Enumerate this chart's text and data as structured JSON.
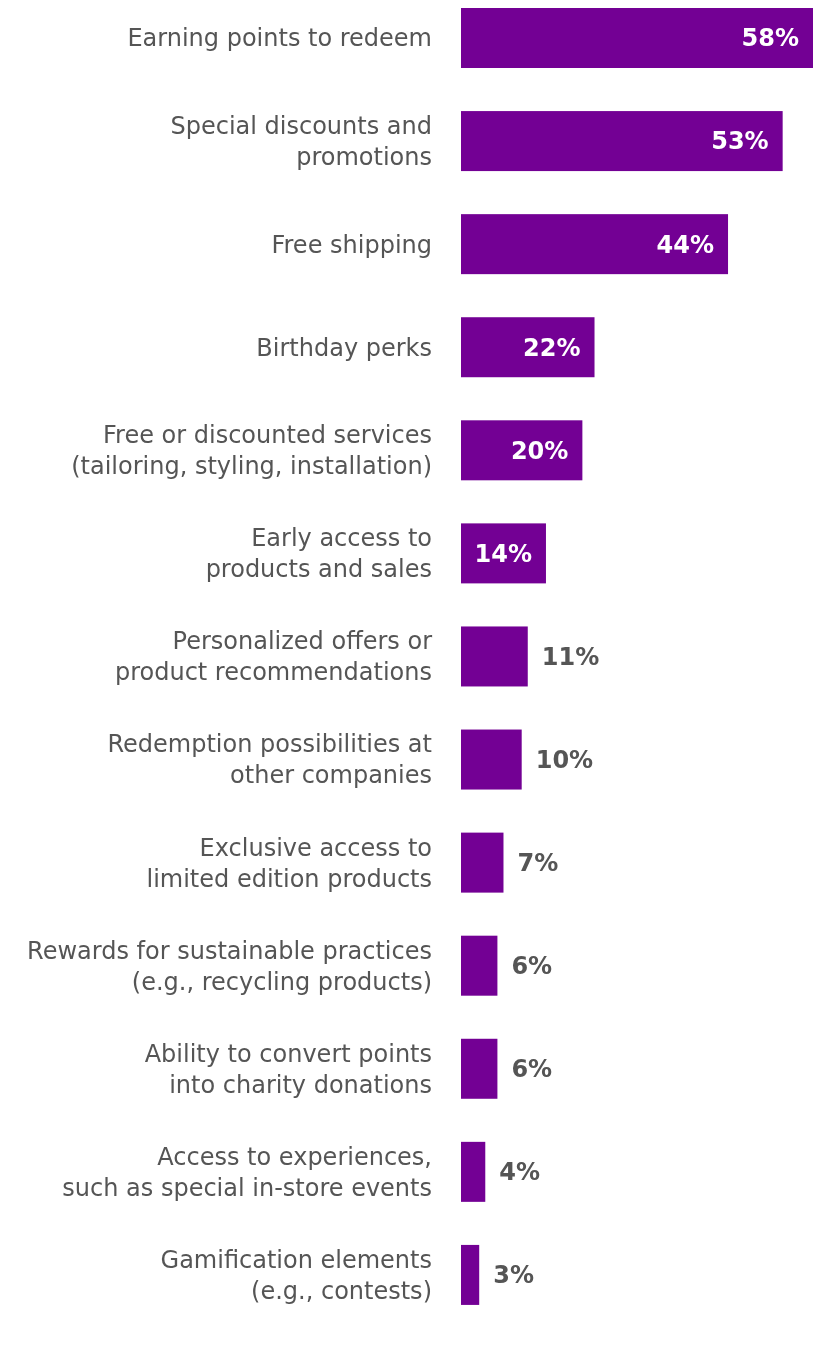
{
  "chart_data": {
    "type": "bar",
    "orientation": "horizontal",
    "data_labels": true,
    "color": "#730094",
    "categories": [
      "Earning points to redeem",
      "Special discounts and\npromotions",
      "Free shipping",
      "Birthday perks",
      "Free or discounted services\n(tailoring, styling, installation)",
      "Early access to\nproducts and sales",
      "Personalized offers or\nproduct recommendations",
      "Redemption possibilities at\nother companies",
      "Exclusive access to\nlimited edition products",
      "Rewards for sustainable practices\n(e.g., recycling products)",
      "Ability to convert points\ninto charity donations",
      "Access to experiences,\nsuch as special in-store events",
      "Gamification elements\n(e.g., contests)"
    ],
    "values": [
      58,
      53,
      44,
      22,
      20,
      14,
      11,
      10,
      7,
      6,
      6,
      4,
      3
    ],
    "value_labels": [
      "58%",
      "53%",
      "44%",
      "22%",
      "20%",
      "14%",
      "11%",
      "10%",
      "7%",
      "6%",
      "6%",
      "4%",
      "3%"
    ]
  }
}
